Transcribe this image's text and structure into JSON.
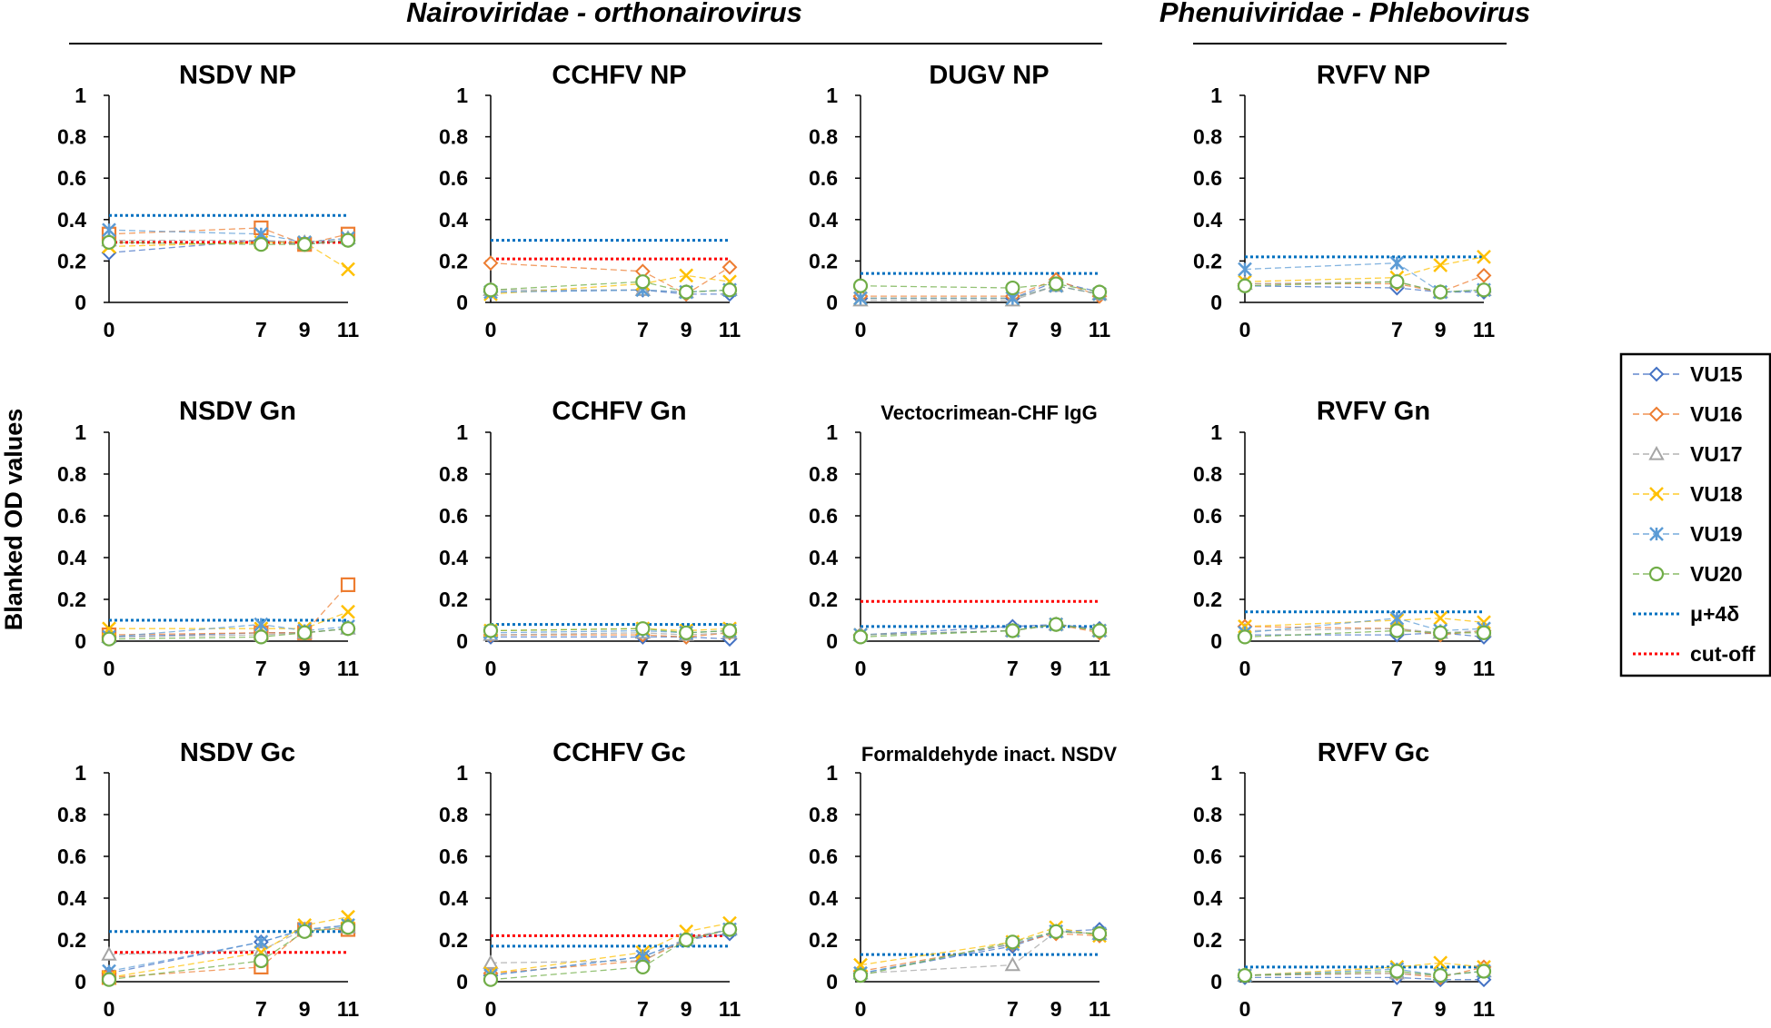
{
  "figure": {
    "ylabel": "Blanked OD values",
    "families": [
      {
        "name": "Nairoviridae - orthonairovirus"
      },
      {
        "name": "Phenuiviridae - Phlebovirus"
      }
    ]
  },
  "legend": [
    {
      "name": "VU15",
      "color": "#4472C4",
      "marker": "diamond"
    },
    {
      "name": "VU16",
      "color": "#ED7D31",
      "marker": "diamond"
    },
    {
      "name": "VU17",
      "color": "#A5A5A5",
      "marker": "triangle"
    },
    {
      "name": "VU18",
      "color": "#FFC000",
      "marker": "x"
    },
    {
      "name": "VU19",
      "color": "#5B9BD5",
      "marker": "asterisk"
    },
    {
      "name": "VU20",
      "color": "#70AD47",
      "marker": "circle"
    },
    {
      "name": "μ+4δ",
      "color": "#0070C0",
      "marker": "dotted-line"
    },
    {
      "name": "cut-off",
      "color": "#FF0000",
      "marker": "dotted-line"
    }
  ],
  "chart_data": [
    {
      "type": "line",
      "title": "NSDV NP",
      "x": [
        0,
        7,
        9,
        11
      ],
      "yticks": [
        "0",
        "0.2",
        "0.4",
        "0.6",
        "0.8",
        "1"
      ],
      "ylim": [
        0,
        1
      ],
      "series": [
        {
          "name": "VU15",
          "values": [
            0.24,
            0.3,
            0.28,
            0.3
          ]
        },
        {
          "name": "VU16",
          "values": [
            0.33,
            0.36,
            0.28,
            0.33
          ]
        },
        {
          "name": "VU17",
          "values": [
            0.3,
            0.3,
            0.29,
            0.31
          ]
        },
        {
          "name": "VU18",
          "values": [
            0.27,
            0.29,
            0.29,
            0.16
          ]
        },
        {
          "name": "VU19",
          "values": [
            0.35,
            0.33,
            0.29,
            0.31
          ]
        },
        {
          "name": "VU20",
          "values": [
            0.29,
            0.28,
            0.28,
            0.3
          ]
        }
      ],
      "mu4d": 0.42,
      "cutoff": 0.29
    },
    {
      "type": "line",
      "title": "CCHFV NP",
      "x": [
        0,
        7,
        9,
        11
      ],
      "yticks": [
        "0",
        "0.2",
        "0.4",
        "0.6",
        "0.8",
        "1"
      ],
      "ylim": [
        0,
        1
      ],
      "series": [
        {
          "name": "VU15",
          "values": [
            0.05,
            0.06,
            0.04,
            0.04
          ]
        },
        {
          "name": "VU16",
          "values": [
            0.19,
            0.15,
            0.04,
            0.17
          ]
        },
        {
          "name": "VU17",
          "values": [
            0.06,
            0.06,
            0.05,
            0.06
          ]
        },
        {
          "name": "VU18",
          "values": [
            0.04,
            0.09,
            0.13,
            0.1
          ]
        },
        {
          "name": "VU19",
          "values": [
            0.05,
            0.06,
            0.05,
            0.06
          ]
        },
        {
          "name": "VU20",
          "values": [
            0.06,
            0.1,
            0.05,
            0.06
          ]
        }
      ],
      "mu4d": 0.3,
      "cutoff": 0.21
    },
    {
      "type": "line",
      "title": "DUGV NP",
      "x": [
        0,
        7,
        9,
        11
      ],
      "yticks": [
        "0",
        "0.2",
        "0.4",
        "0.6",
        "0.8",
        "1"
      ],
      "ylim": [
        0,
        1
      ],
      "series": [
        {
          "name": "VU15",
          "values": [
            0.02,
            0.02,
            0.1,
            0.05
          ]
        },
        {
          "name": "VU16",
          "values": [
            0.03,
            0.03,
            0.11,
            0.03
          ]
        },
        {
          "name": "VU17",
          "values": [
            0.01,
            0.01,
            0.08,
            0.04
          ]
        },
        {
          "name": "VU18",
          "values": [
            0.02,
            0.02,
            0.08,
            0.04
          ]
        },
        {
          "name": "VU19",
          "values": [
            0.02,
            0.02,
            0.08,
            0.04
          ]
        },
        {
          "name": "VU20",
          "values": [
            0.08,
            0.07,
            0.09,
            0.05
          ]
        }
      ],
      "mu4d": 0.14,
      "cutoff": null
    },
    {
      "type": "line",
      "title": "RVFV NP",
      "x": [
        0,
        7,
        9,
        11
      ],
      "yticks": [
        "0",
        "0.2",
        "0.4",
        "0.6",
        "0.8",
        "1"
      ],
      "ylim": [
        0,
        1
      ],
      "series": [
        {
          "name": "VU15",
          "values": [
            0.08,
            0.07,
            0.05,
            0.05
          ]
        },
        {
          "name": "VU16",
          "values": [
            0.09,
            0.09,
            0.05,
            0.13
          ]
        },
        {
          "name": "VU17",
          "values": [
            0.09,
            0.1,
            0.05,
            0.06
          ]
        },
        {
          "name": "VU18",
          "values": [
            0.1,
            0.12,
            0.18,
            0.22
          ]
        },
        {
          "name": "VU19",
          "values": [
            0.16,
            0.19,
            0.05,
            0.06
          ]
        },
        {
          "name": "VU20",
          "values": [
            0.08,
            0.1,
            0.05,
            0.06
          ]
        }
      ],
      "mu4d": 0.22,
      "cutoff": null
    },
    {
      "type": "line",
      "title": "NSDV Gn",
      "x": [
        0,
        7,
        9,
        11
      ],
      "yticks": [
        "0",
        "0.2",
        "0.4",
        "0.6",
        "0.8",
        "1"
      ],
      "ylim": [
        0,
        1
      ],
      "series": [
        {
          "name": "VU15",
          "values": [
            0.02,
            0.04,
            0.04,
            0.06
          ]
        },
        {
          "name": "VU16",
          "values": [
            0.03,
            0.04,
            0.04,
            0.27
          ]
        },
        {
          "name": "VU17",
          "values": [
            0.02,
            0.03,
            0.04,
            0.06
          ]
        },
        {
          "name": "VU18",
          "values": [
            0.06,
            0.06,
            0.06,
            0.14
          ]
        },
        {
          "name": "VU19",
          "values": [
            0.02,
            0.08,
            0.05,
            0.07
          ]
        },
        {
          "name": "VU20",
          "values": [
            0.01,
            0.02,
            0.04,
            0.06
          ]
        }
      ],
      "mu4d": 0.1,
      "cutoff": null
    },
    {
      "type": "line",
      "title": "CCHFV Gn",
      "x": [
        0,
        7,
        9,
        11
      ],
      "yticks": [
        "0",
        "0.2",
        "0.4",
        "0.6",
        "0.8",
        "1"
      ],
      "ylim": [
        0,
        1
      ],
      "series": [
        {
          "name": "VU15",
          "values": [
            0.02,
            0.02,
            0.02,
            0.01
          ]
        },
        {
          "name": "VU16",
          "values": [
            0.03,
            0.03,
            0.02,
            0.04
          ]
        },
        {
          "name": "VU17",
          "values": [
            0.03,
            0.04,
            0.03,
            0.04
          ]
        },
        {
          "name": "VU18",
          "values": [
            0.05,
            0.06,
            0.05,
            0.06
          ]
        },
        {
          "name": "VU19",
          "values": [
            0.04,
            0.05,
            0.04,
            0.05
          ]
        },
        {
          "name": "VU20",
          "values": [
            0.05,
            0.06,
            0.04,
            0.05
          ]
        }
      ],
      "mu4d": 0.08,
      "cutoff": null
    },
    {
      "type": "line",
      "title": "Vectocrimean-CHF IgG",
      "x": [
        0,
        7,
        9,
        11
      ],
      "yticks": [
        "0",
        "0.2",
        "0.4",
        "0.6",
        "0.8",
        "1"
      ],
      "ylim": [
        0,
        1
      ],
      "series": [
        {
          "name": "VU15",
          "values": [
            0.03,
            0.07,
            0.08,
            0.06
          ]
        },
        {
          "name": "VU16",
          "values": [
            0.03,
            0.05,
            0.08,
            0.04
          ]
        },
        {
          "name": "VU17",
          "values": [
            0.03,
            0.05,
            0.08,
            0.05
          ]
        },
        {
          "name": "VU18",
          "values": [
            0.03,
            0.05,
            0.08,
            0.05
          ]
        },
        {
          "name": "VU19",
          "values": [
            0.03,
            0.05,
            0.08,
            0.05
          ]
        },
        {
          "name": "VU20",
          "values": [
            0.02,
            0.05,
            0.08,
            0.05
          ]
        }
      ],
      "mu4d": 0.07,
      "cutoff": 0.19
    },
    {
      "type": "line",
      "title": "RVFV Gn",
      "x": [
        0,
        7,
        9,
        11
      ],
      "yticks": [
        "0",
        "0.2",
        "0.4",
        "0.6",
        "0.8",
        "1"
      ],
      "ylim": [
        0,
        1
      ],
      "series": [
        {
          "name": "VU15",
          "values": [
            0.03,
            0.03,
            0.04,
            0.02
          ]
        },
        {
          "name": "VU16",
          "values": [
            0.07,
            0.06,
            0.03,
            0.05
          ]
        },
        {
          "name": "VU17",
          "values": [
            0.05,
            0.06,
            0.04,
            0.05
          ]
        },
        {
          "name": "VU18",
          "values": [
            0.07,
            0.1,
            0.11,
            0.09
          ]
        },
        {
          "name": "VU19",
          "values": [
            0.04,
            0.11,
            0.05,
            0.06
          ]
        },
        {
          "name": "VU20",
          "values": [
            0.02,
            0.05,
            0.04,
            0.04
          ]
        }
      ],
      "mu4d": 0.14,
      "cutoff": null
    },
    {
      "type": "line",
      "title": "NSDV Gc",
      "x": [
        0,
        7,
        9,
        11
      ],
      "yticks": [
        "0",
        "0.2",
        "0.4",
        "0.6",
        "0.8",
        "1"
      ],
      "ylim": [
        0,
        1
      ],
      "series": [
        {
          "name": "VU15",
          "values": [
            0.04,
            0.19,
            0.25,
            0.27
          ]
        },
        {
          "name": "VU16",
          "values": [
            0.02,
            0.07,
            0.25,
            0.25
          ]
        },
        {
          "name": "VU17",
          "values": [
            0.13,
            0.15,
            0.25,
            0.26
          ]
        },
        {
          "name": "VU18",
          "values": [
            0.02,
            0.14,
            0.27,
            0.31
          ]
        },
        {
          "name": "VU19",
          "values": [
            0.05,
            0.19,
            0.25,
            0.27
          ]
        },
        {
          "name": "VU20",
          "values": [
            0.01,
            0.1,
            0.24,
            0.26
          ]
        }
      ],
      "mu4d": 0.24,
      "cutoff": 0.14
    },
    {
      "type": "line",
      "title": "CCHFV Gc",
      "x": [
        0,
        7,
        9,
        11
      ],
      "yticks": [
        "0",
        "0.2",
        "0.4",
        "0.6",
        "0.8",
        "1"
      ],
      "ylim": [
        0,
        1
      ],
      "series": [
        {
          "name": "VU15",
          "values": [
            0.03,
            0.12,
            0.2,
            0.23
          ]
        },
        {
          "name": "VU16",
          "values": [
            0.04,
            0.1,
            0.2,
            0.25
          ]
        },
        {
          "name": "VU17",
          "values": [
            0.09,
            0.1,
            0.21,
            0.25
          ]
        },
        {
          "name": "VU18",
          "values": [
            0.04,
            0.14,
            0.24,
            0.28
          ]
        },
        {
          "name": "VU19",
          "values": [
            0.03,
            0.12,
            0.2,
            0.25
          ]
        },
        {
          "name": "VU20",
          "values": [
            0.01,
            0.07,
            0.2,
            0.25
          ]
        }
      ],
      "mu4d": 0.17,
      "cutoff": 0.22
    },
    {
      "type": "line",
      "title": "Formaldehyde inact. NSDV",
      "x": [
        0,
        7,
        9,
        11
      ],
      "yticks": [
        "0",
        "0.2",
        "0.4",
        "0.6",
        "0.8",
        "1"
      ],
      "ylim": [
        0,
        1
      ],
      "series": [
        {
          "name": "VU15",
          "values": [
            0.04,
            0.17,
            0.24,
            0.25
          ]
        },
        {
          "name": "VU16",
          "values": [
            0.05,
            0.18,
            0.23,
            0.22
          ]
        },
        {
          "name": "VU17",
          "values": [
            0.04,
            0.08,
            0.24,
            0.23
          ]
        },
        {
          "name": "VU18",
          "values": [
            0.08,
            0.19,
            0.26,
            0.22
          ]
        },
        {
          "name": "VU19",
          "values": [
            0.04,
            0.18,
            0.24,
            0.23
          ]
        },
        {
          "name": "VU20",
          "values": [
            0.03,
            0.19,
            0.24,
            0.23
          ]
        }
      ],
      "mu4d": 0.13,
      "cutoff": null
    },
    {
      "type": "line",
      "title": "RVFV Gc",
      "x": [
        0,
        7,
        9,
        11
      ],
      "yticks": [
        "0",
        "0.2",
        "0.4",
        "0.6",
        "0.8",
        "1"
      ],
      "ylim": [
        0,
        1
      ],
      "series": [
        {
          "name": "VU15",
          "values": [
            0.02,
            0.02,
            0.01,
            0.01
          ]
        },
        {
          "name": "VU16",
          "values": [
            0.03,
            0.04,
            0.02,
            0.07
          ]
        },
        {
          "name": "VU17",
          "values": [
            0.03,
            0.04,
            0.03,
            0.05
          ]
        },
        {
          "name": "VU18",
          "values": [
            0.03,
            0.07,
            0.09,
            0.07
          ]
        },
        {
          "name": "VU19",
          "values": [
            0.03,
            0.06,
            0.03,
            0.05
          ]
        },
        {
          "name": "VU20",
          "values": [
            0.03,
            0.05,
            0.03,
            0.05
          ]
        }
      ],
      "mu4d": 0.07,
      "cutoff": null
    }
  ]
}
